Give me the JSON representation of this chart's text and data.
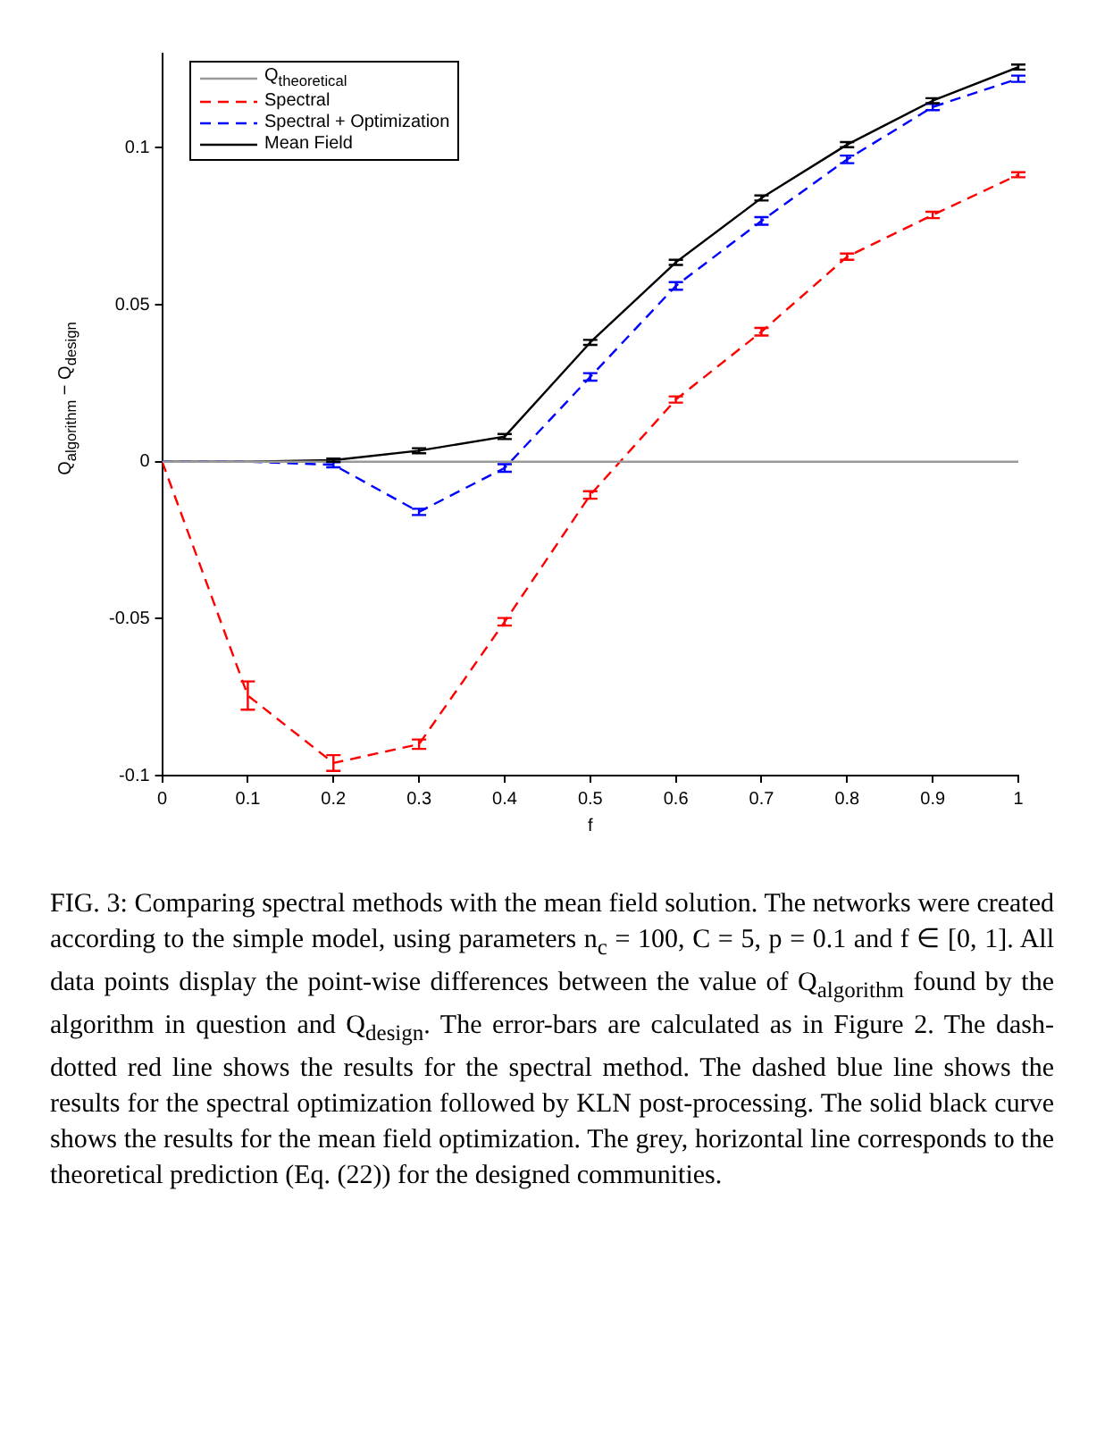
{
  "chart_data": {
    "type": "line",
    "xlabel": "f",
    "ylabel": "Q$_{algorithm}$ − Q$_{design}$",
    "x": [
      0,
      0.1,
      0.2,
      0.3,
      0.4,
      0.5,
      0.6,
      0.7,
      0.8,
      0.9,
      1
    ],
    "series": [
      {
        "name": "Q$_{theoretical}$",
        "color": "#999999",
        "line_style": "solid",
        "values": [
          0,
          0,
          0,
          0,
          0,
          0,
          0,
          0,
          0,
          0,
          0
        ]
      },
      {
        "name": "Spectral",
        "color": "#ff0000",
        "line_style": "dashed",
        "values": [
          0,
          -0.0745,
          -0.096,
          -0.09,
          -0.051,
          -0.0106,
          0.0198,
          0.0414,
          0.0653,
          0.0786,
          0.0914
        ],
        "errors": [
          null,
          0.0045,
          0.0025,
          0.0015,
          0.0012,
          0.0012,
          0.001,
          0.0012,
          0.001,
          0.001,
          0.0008
        ]
      },
      {
        "name": "Spectral + Optimization",
        "color": "#0000ff",
        "line_style": "dashed",
        "values": [
          0,
          0,
          -0.001,
          -0.016,
          -0.002,
          0.027,
          0.056,
          0.0767,
          0.0963,
          0.113,
          0.122
        ],
        "errors": [
          null,
          null,
          0.0008,
          0.001,
          0.0012,
          0.0012,
          0.0012,
          0.0012,
          0.0012,
          0.001,
          0.001
        ]
      },
      {
        "name": "Mean Field",
        "color": "#000000",
        "line_style": "solid",
        "values": [
          0,
          0,
          0.0005,
          0.0035,
          0.008,
          0.038,
          0.0635,
          0.084,
          0.101,
          0.115,
          0.1257
        ],
        "errors": [
          null,
          null,
          0.0005,
          0.0008,
          0.0008,
          0.0008,
          0.0008,
          0.0008,
          0.0008,
          0.0008,
          0.0008
        ]
      }
    ],
    "xlim": [
      0,
      1
    ],
    "xticks": [
      0,
      0.1,
      0.2,
      0.3,
      0.4,
      0.5,
      0.6,
      0.7,
      0.8,
      0.9,
      1
    ],
    "ylim": [
      -0.1,
      0.13
    ],
    "yticks": [
      -0.1,
      -0.05,
      0,
      0.05,
      0.1
    ],
    "grid": false,
    "legend": "top left",
    "marker": "none",
    "annotations": [
      "FIG. 3: Comparing spectral methods with the mean field solution. The networks were created according to the simple model, using parameters n$_{c}$ = 100, C = 5, p = 0.1 and f ∈ [0, 1]. All data points display the point-wise differences between the value of Q$_{algorithm}$ found by the algorithm in question and Q$_{design}$. The error-bars are calculated as in Figure 2. The dash-dotted red line shows the results for the spectral method. The dashed blue line shows the results for the spectral optimization followed by KLN post-processing. The solid black curve shows the results for the mean field optimization. The grey, horizontal line corresponds to the theoretical prediction (Eq. (22)) for the designed communities."
    ]
  }
}
